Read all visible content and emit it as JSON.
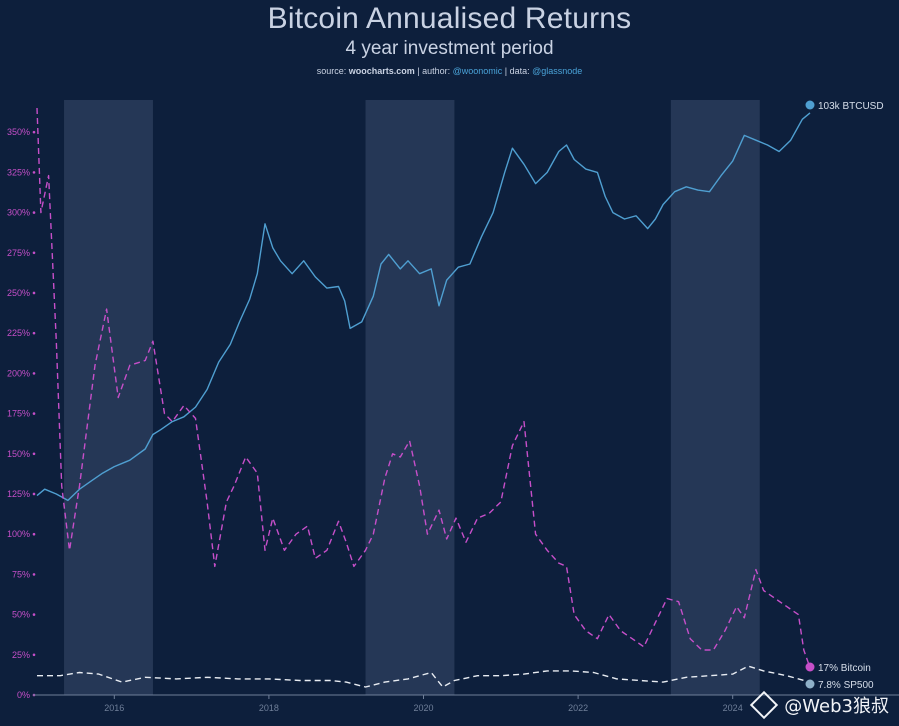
{
  "header": {
    "title": "Bitcoin Annualised Returns",
    "subtitle": "4 year investment period",
    "source_prefix": "source: ",
    "source_site": "woocharts.com",
    "author_prefix": " | author: ",
    "author": "@woonomic",
    "data_prefix": " | data: ",
    "data_source": "@glassnode"
  },
  "watermark": {
    "text": "@Web3狼叔"
  },
  "colors": {
    "background": "#0d1f3c",
    "price": "#4f9fd1",
    "bitcoin_return": "#c64fc9",
    "sp500_return": "#e8ecf2",
    "band": "#2a3c5a",
    "axis": "#6f7f99"
  },
  "chart_data": {
    "type": "line",
    "xlim": [
      2015.0,
      2025.0
    ],
    "ylim": [
      0,
      370
    ],
    "y_ticks": [
      0,
      25,
      50,
      75,
      100,
      125,
      150,
      175,
      200,
      225,
      250,
      275,
      300,
      325,
      350
    ],
    "y_tick_labels": [
      "0%",
      "25%",
      "50%",
      "75%",
      "100%",
      "125%",
      "150%",
      "175%",
      "200%",
      "225%",
      "250%",
      "275%",
      "300%",
      "325%",
      "350%"
    ],
    "x_ticks": [
      2016,
      2018,
      2020,
      2022,
      2024
    ],
    "x_tick_labels": [
      "2016",
      "2018",
      "2020",
      "2022",
      "2024"
    ],
    "shaded_periods": [
      [
        2015.35,
        2016.5
      ],
      [
        2019.25,
        2020.4
      ],
      [
        2023.2,
        2024.35
      ]
    ],
    "series": [
      {
        "name": "BTCUSD",
        "end_label": "103k BTCUSD",
        "style": "solid",
        "axis": "log-price",
        "points": [
          [
            2015.0,
            124
          ],
          [
            2015.1,
            128
          ],
          [
            2015.25,
            125
          ],
          [
            2015.4,
            121
          ],
          [
            2015.55,
            128
          ],
          [
            2015.7,
            133
          ],
          [
            2015.85,
            138
          ],
          [
            2016.0,
            142
          ],
          [
            2016.2,
            146
          ],
          [
            2016.4,
            153
          ],
          [
            2016.5,
            162
          ],
          [
            2016.6,
            165
          ],
          [
            2016.75,
            170
          ],
          [
            2016.9,
            173
          ],
          [
            2017.05,
            179
          ],
          [
            2017.2,
            190
          ],
          [
            2017.35,
            207
          ],
          [
            2017.5,
            218
          ],
          [
            2017.62,
            232
          ],
          [
            2017.75,
            246
          ],
          [
            2017.85,
            262
          ],
          [
            2017.95,
            293
          ],
          [
            2018.05,
            278
          ],
          [
            2018.15,
            270
          ],
          [
            2018.3,
            262
          ],
          [
            2018.45,
            270
          ],
          [
            2018.6,
            260
          ],
          [
            2018.75,
            253
          ],
          [
            2018.9,
            254
          ],
          [
            2018.98,
            245
          ],
          [
            2019.05,
            228
          ],
          [
            2019.2,
            232
          ],
          [
            2019.35,
            248
          ],
          [
            2019.45,
            268
          ],
          [
            2019.55,
            274
          ],
          [
            2019.7,
            265
          ],
          [
            2019.8,
            270
          ],
          [
            2019.95,
            262
          ],
          [
            2020.1,
            265
          ],
          [
            2020.2,
            242
          ],
          [
            2020.3,
            258
          ],
          [
            2020.45,
            266
          ],
          [
            2020.6,
            268
          ],
          [
            2020.75,
            285
          ],
          [
            2020.9,
            300
          ],
          [
            2021.05,
            325
          ],
          [
            2021.15,
            340
          ],
          [
            2021.3,
            330
          ],
          [
            2021.45,
            318
          ],
          [
            2021.6,
            325
          ],
          [
            2021.75,
            338
          ],
          [
            2021.85,
            342
          ],
          [
            2021.95,
            333
          ],
          [
            2022.1,
            327
          ],
          [
            2022.25,
            325
          ],
          [
            2022.35,
            310
          ],
          [
            2022.45,
            300
          ],
          [
            2022.6,
            296
          ],
          [
            2022.75,
            298
          ],
          [
            2022.9,
            290
          ],
          [
            2023.0,
            296
          ],
          [
            2023.1,
            305
          ],
          [
            2023.25,
            313
          ],
          [
            2023.4,
            316
          ],
          [
            2023.55,
            314
          ],
          [
            2023.7,
            313
          ],
          [
            2023.85,
            323
          ],
          [
            2024.0,
            332
          ],
          [
            2024.15,
            348
          ],
          [
            2024.3,
            345
          ],
          [
            2024.45,
            342
          ],
          [
            2024.6,
            338
          ],
          [
            2024.75,
            345
          ],
          [
            2024.9,
            358
          ],
          [
            2025.0,
            362
          ]
        ]
      },
      {
        "name": "Bitcoin",
        "end_label": "17% Bitcoin",
        "style": "dashed",
        "points": [
          [
            2015.0,
            365
          ],
          [
            2015.05,
            300
          ],
          [
            2015.15,
            323
          ],
          [
            2015.25,
            220
          ],
          [
            2015.32,
            130
          ],
          [
            2015.42,
            90
          ],
          [
            2015.55,
            130
          ],
          [
            2015.75,
            205
          ],
          [
            2015.9,
            240
          ],
          [
            2016.05,
            185
          ],
          [
            2016.2,
            205
          ],
          [
            2016.4,
            208
          ],
          [
            2016.5,
            220
          ],
          [
            2016.65,
            175
          ],
          [
            2016.75,
            170
          ],
          [
            2016.9,
            180
          ],
          [
            2017.05,
            172
          ],
          [
            2017.2,
            120
          ],
          [
            2017.3,
            80
          ],
          [
            2017.45,
            120
          ],
          [
            2017.55,
            130
          ],
          [
            2017.7,
            148
          ],
          [
            2017.85,
            138
          ],
          [
            2017.95,
            90
          ],
          [
            2018.05,
            110
          ],
          [
            2018.2,
            90
          ],
          [
            2018.35,
            100
          ],
          [
            2018.5,
            105
          ],
          [
            2018.6,
            85
          ],
          [
            2018.75,
            90
          ],
          [
            2018.9,
            108
          ],
          [
            2019.0,
            95
          ],
          [
            2019.1,
            80
          ],
          [
            2019.25,
            90
          ],
          [
            2019.35,
            100
          ],
          [
            2019.5,
            135
          ],
          [
            2019.6,
            150
          ],
          [
            2019.7,
            148
          ],
          [
            2019.82,
            158
          ],
          [
            2019.95,
            130
          ],
          [
            2020.05,
            100
          ],
          [
            2020.2,
            115
          ],
          [
            2020.3,
            97
          ],
          [
            2020.42,
            110
          ],
          [
            2020.55,
            95
          ],
          [
            2020.7,
            110
          ],
          [
            2020.85,
            113
          ],
          [
            2021.0,
            120
          ],
          [
            2021.15,
            155
          ],
          [
            2021.3,
            170
          ],
          [
            2021.45,
            100
          ],
          [
            2021.6,
            90
          ],
          [
            2021.75,
            82
          ],
          [
            2021.85,
            80
          ],
          [
            2021.95,
            50
          ],
          [
            2022.1,
            40
          ],
          [
            2022.25,
            35
          ],
          [
            2022.4,
            50
          ],
          [
            2022.55,
            40
          ],
          [
            2022.7,
            35
          ],
          [
            2022.85,
            30
          ],
          [
            2023.0,
            45
          ],
          [
            2023.15,
            60
          ],
          [
            2023.3,
            58
          ],
          [
            2023.45,
            35
          ],
          [
            2023.6,
            28
          ],
          [
            2023.75,
            28
          ],
          [
            2023.9,
            40
          ],
          [
            2024.05,
            55
          ],
          [
            2024.15,
            48
          ],
          [
            2024.3,
            78
          ],
          [
            2024.4,
            65
          ],
          [
            2024.55,
            60
          ],
          [
            2024.7,
            55
          ],
          [
            2024.85,
            50
          ],
          [
            2024.92,
            28
          ],
          [
            2025.0,
            17
          ]
        ]
      },
      {
        "name": "SP500",
        "end_label": "7.8% SP500",
        "style": "dashed",
        "points": [
          [
            2015.0,
            12
          ],
          [
            2015.3,
            12
          ],
          [
            2015.55,
            14
          ],
          [
            2015.8,
            13
          ],
          [
            2016.1,
            8
          ],
          [
            2016.4,
            11
          ],
          [
            2016.8,
            10
          ],
          [
            2017.2,
            11
          ],
          [
            2017.6,
            10
          ],
          [
            2018.0,
            10
          ],
          [
            2018.4,
            9
          ],
          [
            2018.8,
            9
          ],
          [
            2019.0,
            8
          ],
          [
            2019.25,
            5
          ],
          [
            2019.5,
            8
          ],
          [
            2019.8,
            10
          ],
          [
            2020.1,
            14
          ],
          [
            2020.25,
            5
          ],
          [
            2020.4,
            9
          ],
          [
            2020.7,
            12
          ],
          [
            2021.0,
            12
          ],
          [
            2021.3,
            13
          ],
          [
            2021.6,
            15
          ],
          [
            2021.9,
            15
          ],
          [
            2022.2,
            14
          ],
          [
            2022.5,
            10
          ],
          [
            2022.8,
            9
          ],
          [
            2023.1,
            8
          ],
          [
            2023.4,
            11
          ],
          [
            2023.7,
            12
          ],
          [
            2024.0,
            13
          ],
          [
            2024.2,
            18
          ],
          [
            2024.4,
            15
          ],
          [
            2024.7,
            12
          ],
          [
            2025.0,
            8
          ]
        ]
      }
    ]
  }
}
